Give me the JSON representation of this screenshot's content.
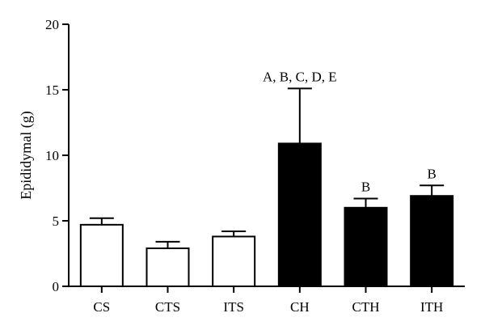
{
  "chart_data": {
    "type": "bar",
    "title": "",
    "xlabel": "",
    "ylabel": "Epididymal (g)",
    "ylim": [
      0,
      20
    ],
    "yticks": [
      0,
      5,
      10,
      15,
      20
    ],
    "categories": [
      "CS",
      "CTS",
      "ITS",
      "CH",
      "CTH",
      "ITH"
    ],
    "values": [
      4.7,
      2.9,
      3.8,
      10.9,
      6.0,
      6.9
    ],
    "errors": [
      0.5,
      0.5,
      0.4,
      4.2,
      0.7,
      0.8
    ],
    "fills": [
      "#ffffff",
      "#ffffff",
      "#ffffff",
      "#000000",
      "#000000",
      "#000000"
    ],
    "annotations": [
      "",
      "",
      "",
      "A, B, C, D, E",
      "B",
      "B"
    ],
    "grid": false,
    "legend": "none"
  }
}
